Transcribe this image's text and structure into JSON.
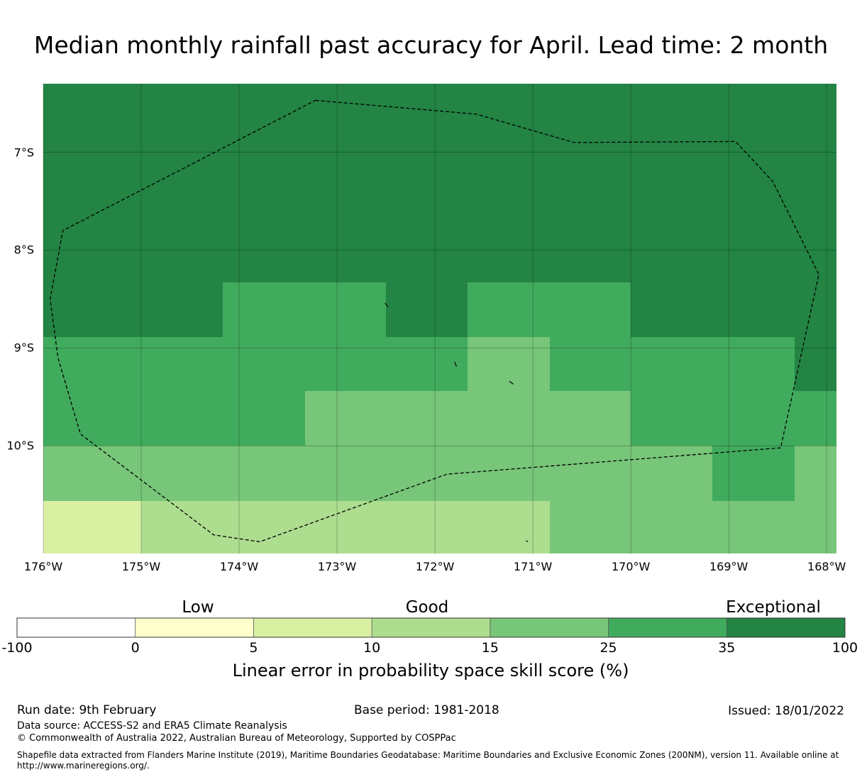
{
  "title": "Median monthly rainfall past accuracy for April. Lead time: 2 month",
  "chart_data": {
    "type": "heatmap",
    "title": "Median monthly rainfall past accuracy for April. Lead time: 2 month",
    "lon_range": [
      -176.0,
      -167.9
    ],
    "lat_range": [
      -6.3,
      -11.1
    ],
    "lon_ticks": [
      "176°W",
      "175°W",
      "174°W",
      "173°W",
      "172°W",
      "171°W",
      "170°W",
      "169°W",
      "168°W"
    ],
    "lat_ticks": [
      "7°S",
      "8°S",
      "9°S",
      "10°S"
    ],
    "lon_tick_values": [
      -176,
      -175,
      -174,
      -173,
      -172,
      -171,
      -170,
      -169,
      -168
    ],
    "lat_tick_values": [
      -7,
      -8,
      -9,
      -10
    ],
    "grid_lon_edges": [
      -176.0,
      -175.0,
      -174.17,
      -173.33,
      -172.5,
      -171.67,
      -170.83,
      -170.0,
      -169.17,
      -168.33,
      -167.9
    ],
    "grid_lat_edges": [
      -6.3,
      -8.33,
      -8.89,
      -9.44,
      -10.0,
      -10.56,
      -11.1
    ],
    "category_levels": [
      [
        6,
        6,
        6,
        6,
        6,
        6,
        6,
        6,
        6,
        6
      ],
      [
        6,
        6,
        5,
        5,
        6,
        5,
        5,
        6,
        6,
        6
      ],
      [
        5,
        5,
        5,
        5,
        5,
        4,
        5,
        5,
        5,
        6
      ],
      [
        5,
        5,
        5,
        4,
        4,
        4,
        4,
        5,
        5,
        5
      ],
      [
        4,
        4,
        4,
        4,
        4,
        4,
        4,
        4,
        5,
        4
      ],
      [
        2,
        3,
        3,
        3,
        3,
        3,
        4,
        4,
        4,
        4
      ]
    ],
    "boundary_polygon": [
      [
        -173.22,
        -6.47
      ],
      [
        -171.58,
        -6.61
      ],
      [
        -170.58,
        -6.9
      ],
      [
        -168.93,
        -6.89
      ],
      [
        -168.55,
        -7.3
      ],
      [
        -168.08,
        -8.25
      ],
      [
        -168.47,
        -10.02
      ],
      [
        -171.88,
        -10.29
      ],
      [
        -173.79,
        -10.98
      ],
      [
        -174.26,
        -10.91
      ],
      [
        -175.62,
        -9.88
      ],
      [
        -175.85,
        -9.1
      ],
      [
        -175.93,
        -8.5
      ],
      [
        -175.8,
        -7.8
      ]
    ],
    "islands": [
      [
        [
          -172.51,
          -8.54
        ],
        [
          -172.48,
          -8.58
        ]
      ],
      [
        [
          -171.8,
          -9.14
        ],
        [
          -171.78,
          -9.19
        ]
      ],
      [
        [
          -171.24,
          -9.34
        ],
        [
          -171.2,
          -9.37
        ]
      ],
      [
        [
          -171.07,
          -10.97
        ],
        [
          -171.05,
          -10.98
        ]
      ]
    ],
    "colorbar": {
      "ticks": [
        "-100",
        "0",
        "5",
        "10",
        "15",
        "25",
        "35",
        "100"
      ],
      "colors": [
        "#ffffff",
        "#ffffcc",
        "#d9f0a3",
        "#addd8e",
        "#78c679",
        "#41ab5d",
        "#238443"
      ],
      "categories": [
        "Low",
        "Good",
        "Exceptional"
      ],
      "label": "Linear error in probability space skill score (%)"
    }
  },
  "footer": {
    "run_date": "Run date: 9th February",
    "base_period": "Base period: 1981-2018",
    "issued": "Issued: 18/01/2022",
    "data_source": "Data source: ACCESS-S2 and ERA5 Climate Reanalysis",
    "copyright": "© Commonwealth of Australia 2022, Australian Bureau of Meteorology, Supported by COSPPac",
    "shapefile": "Shapefile data extracted from Flanders Marine Institute (2019), Maritime Boundaries Geodatabase: Maritime Boundaries and Exclusive Economic Zones (200NM), version 11. Available online at http://www.marineregions.org/."
  }
}
